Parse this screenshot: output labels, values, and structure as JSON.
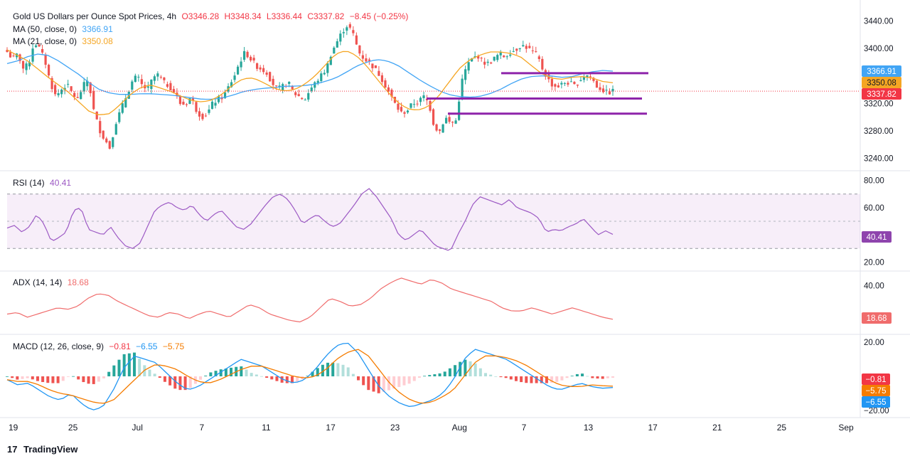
{
  "price_header": {
    "title": "Gold US Dollars per Ounce Spot Prices, 4h",
    "o": "O3346.28",
    "h": "H3348.34",
    "l": "L3336.44",
    "c": "C3337.82",
    "change": "−8.45 (−0.25%)"
  },
  "ma50_label": {
    "name": "MA (50, close, 0)",
    "value": "3366.91"
  },
  "ma21_label": {
    "name": "MA (21, close, 0)",
    "value": "3350.08"
  },
  "rsi_label": {
    "name": "RSI (14)",
    "value": "40.41"
  },
  "adx_label": {
    "name": "ADX (14, 14)",
    "value": "18.68"
  },
  "macd_label": {
    "name": "MACD (12, 26, close, 9)",
    "v1": "−0.81",
    "v2": "−6.55",
    "v3": "−5.75"
  },
  "badges": {
    "ma50": "3366.91",
    "ma21": "3350.08",
    "last": "3337.82",
    "rsi": "40.41",
    "adx": "18.68",
    "macd_hist": "−0.81",
    "macd_signal": "−5.75",
    "macd_line": "−6.55"
  },
  "branding": {
    "logo": "TradingView"
  },
  "colors": {
    "up": "#26a69a",
    "down": "#ef5350",
    "ma50": "#42a5f5",
    "ma21": "#f5a623",
    "rsi": "#9c59c4",
    "adx": "#f06c6c",
    "level": "#8e24aa",
    "last_badge": "#f23645",
    "rsi_badge": "#8e44ad",
    "macd_hist_badge": "#f23645",
    "macd_signal_badge": "#f57c00",
    "macd_line_badge": "#2196f3"
  },
  "chart_data": [
    {
      "type": "candlestick",
      "title": "Gold US Dollars per Ounce Spot Prices, 4h",
      "x_tick_labels": [
        "19",
        "25",
        "Jul",
        "7",
        "11",
        "17",
        "23",
        "Aug",
        "7",
        "13",
        "17",
        "21",
        "25",
        "Sep"
      ],
      "y_tick_labels": [
        "3440.00",
        "3400.00",
        "3320.00",
        "3280.00",
        "3240.00"
      ],
      "ylim": [
        3230,
        3450
      ],
      "close_path": [
        3395,
        3385,
        3392,
        3370,
        3378,
        3410,
        3400,
        3382,
        3350,
        3330,
        3340,
        3348,
        3335,
        3325,
        3345,
        3355,
        3310,
        3283,
        3268,
        3255,
        3290,
        3310,
        3330,
        3350,
        3360,
        3345,
        3340,
        3358,
        3362,
        3350,
        3345,
        3335,
        3320,
        3318,
        3330,
        3310,
        3300,
        3305,
        3320,
        3326,
        3330,
        3345,
        3360,
        3380,
        3395,
        3385,
        3375,
        3370,
        3365,
        3350,
        3340,
        3345,
        3350,
        3335,
        3330,
        3325,
        3340,
        3350,
        3360,
        3370,
        3395,
        3410,
        3425,
        3435,
        3420,
        3395,
        3385,
        3380,
        3370,
        3360,
        3345,
        3330,
        3315,
        3305,
        3310,
        3320,
        3322,
        3330,
        3320,
        3285,
        3280,
        3300,
        3290,
        3295,
        3350,
        3375,
        3385,
        3390,
        3380,
        3378,
        3385,
        3392,
        3388,
        3395,
        3398,
        3405,
        3402,
        3396,
        3390,
        3370,
        3355,
        3345,
        3345,
        3350,
        3350,
        3345,
        3355,
        3362,
        3358,
        3345,
        3340,
        3335,
        3338
      ],
      "ma50_path": [
        3378,
        3382,
        3388,
        3392,
        3390,
        3382,
        3372,
        3362,
        3350,
        3340,
        3335,
        3333,
        3333,
        3334,
        3334,
        3333,
        3332,
        3330,
        3328,
        3326,
        3326,
        3328,
        3332,
        3337,
        3340,
        3342,
        3343,
        3345,
        3345,
        3346,
        3348,
        3352,
        3357,
        3365,
        3374,
        3380,
        3384,
        3382,
        3376,
        3366,
        3356,
        3347,
        3339,
        3333,
        3330,
        3329,
        3330,
        3334,
        3340,
        3348,
        3355,
        3359,
        3360,
        3360,
        3358,
        3359,
        3363,
        3366,
        3368,
        3367
      ],
      "ma21_path": [
        3398,
        3390,
        3382,
        3370,
        3358,
        3347,
        3336,
        3322,
        3308,
        3303,
        3305,
        3318,
        3333,
        3343,
        3347,
        3342,
        3337,
        3330,
        3324,
        3322,
        3325,
        3334,
        3347,
        3356,
        3357,
        3350,
        3342,
        3338,
        3340,
        3348,
        3360,
        3376,
        3392,
        3397,
        3390,
        3375,
        3356,
        3338,
        3322,
        3312,
        3310,
        3315,
        3330,
        3350,
        3370,
        3383,
        3390,
        3395,
        3395,
        3393,
        3388,
        3376,
        3364,
        3357,
        3355,
        3358,
        3359,
        3357,
        3352,
        3350
      ],
      "horizontal_levels": [
        3364,
        3327,
        3305
      ],
      "ma50_last": 3366.91,
      "ma21_last": 3350.08,
      "last_close": 3337.82
    },
    {
      "type": "line",
      "title": "RSI (14)",
      "y_tick_labels": [
        "80.00",
        "60.00",
        "20.00"
      ],
      "ylim": [
        15,
        85
      ],
      "band": [
        30,
        70
      ],
      "midline": 50,
      "values": [
        45,
        47,
        42,
        46,
        55,
        48,
        35,
        38,
        42,
        58,
        60,
        44,
        42,
        40,
        46,
        38,
        32,
        30,
        34,
        46,
        58,
        62,
        64,
        60,
        58,
        62,
        55,
        50,
        55,
        58,
        52,
        46,
        44,
        48,
        55,
        62,
        68,
        70,
        66,
        58,
        48,
        52,
        55,
        50,
        46,
        48,
        55,
        62,
        70,
        74,
        68,
        60,
        52,
        40,
        36,
        40,
        44,
        38,
        32,
        30,
        28,
        40,
        50,
        62,
        68,
        66,
        64,
        62,
        66,
        60,
        58,
        56,
        52,
        42,
        44,
        43,
        46,
        48,
        52,
        46,
        40,
        43,
        40.41
      ],
      "last": 40.41
    },
    {
      "type": "line",
      "title": "ADX (14, 14)",
      "y_tick_labels": [
        "40.00"
      ],
      "ylim": [
        10,
        48
      ],
      "values": [
        22,
        23,
        20,
        22,
        24,
        26,
        25,
        27,
        32,
        35,
        34,
        30,
        27,
        24,
        21,
        20,
        23,
        22,
        19,
        22,
        24,
        22,
        20,
        24,
        28,
        26,
        22,
        20,
        18,
        17,
        20,
        26,
        32,
        30,
        27,
        28,
        32,
        38,
        42,
        45,
        43,
        41,
        44,
        42,
        38,
        36,
        34,
        32,
        30,
        26,
        24,
        24,
        26,
        24,
        22,
        24,
        26,
        24,
        22,
        20,
        18.68
      ],
      "last": 18.68
    },
    {
      "type": "bar_line",
      "title": "MACD (12, 26, close, 9)",
      "y_tick_labels": [
        "20.00",
        "−20.00"
      ],
      "ylim": [
        -23,
        23
      ],
      "macd_line": [
        -2,
        -5,
        -4,
        -8,
        -12,
        -14,
        -10,
        -16,
        -20,
        -18,
        -8,
        5,
        12,
        10,
        8,
        2,
        -4,
        -8,
        -6,
        -2,
        2,
        6,
        10,
        8,
        6,
        2,
        -2,
        -4,
        -2,
        4,
        12,
        18,
        20,
        14,
        4,
        -6,
        -12,
        -16,
        -18,
        -16,
        -14,
        -10,
        -2,
        10,
        16,
        14,
        12,
        10,
        6,
        2,
        -2,
        -6,
        -8,
        -6,
        -4,
        -6,
        -7,
        -6.55
      ],
      "signal_line": [
        -2,
        -3,
        -3,
        -5,
        -8,
        -10,
        -11,
        -13,
        -15,
        -16,
        -14,
        -8,
        -2,
        4,
        7,
        6,
        4,
        0,
        -3,
        -4,
        -2,
        1,
        4,
        6,
        6,
        4,
        2,
        0,
        -1,
        0,
        4,
        10,
        14,
        16,
        12,
        4,
        -4,
        -10,
        -14,
        -16,
        -15,
        -12,
        -8,
        0,
        8,
        12,
        12,
        11,
        9,
        6,
        2,
        -2,
        -5,
        -6,
        -6,
        -5,
        -5.5,
        -5.75
      ],
      "histogram_last": -0.81,
      "macd_last": -6.55,
      "signal_last": -5.75
    }
  ]
}
